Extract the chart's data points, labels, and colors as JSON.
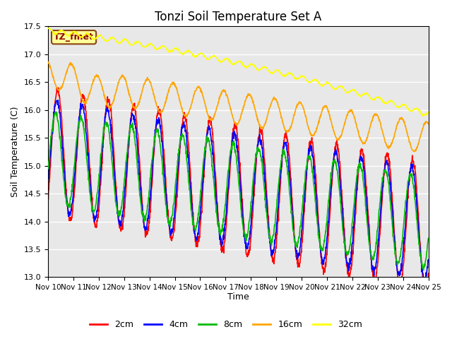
{
  "title": "Tonzi Soil Temperature Set A",
  "ylabel": "Soil Temperature (C)",
  "xlabel": "Time",
  "ylim": [
    13.0,
    17.5
  ],
  "annotation_text": "TZ_fmet",
  "annotation_color": "#8B0000",
  "annotation_bg": "#FFFF99",
  "annotation_border": "#8B4513",
  "bg_inner": "#E8E8E8",
  "bg_outer": "#FFFFFF",
  "grid_color": "#FFFFFF",
  "colors": {
    "2cm": "#FF0000",
    "4cm": "#0000FF",
    "8cm": "#00BB00",
    "16cm": "#FFA500",
    "32cm": "#FFFF00"
  },
  "xtick_labels": [
    "Nov 10",
    "Nov 11",
    "Nov 12",
    "Nov 13",
    "Nov 14",
    "Nov 15",
    "Nov 16",
    "Nov 17",
    "Nov 18",
    "Nov 19",
    "Nov 20",
    "Nov 21",
    "Nov 22",
    "Nov 23",
    "Nov 24",
    "Nov 25"
  ],
  "n_days": 15,
  "samples_per_day": 96
}
